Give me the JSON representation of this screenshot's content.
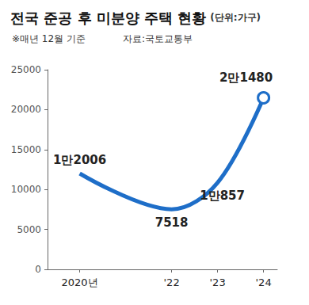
{
  "chart_data": {
    "type": "line",
    "title": "전국 준공 후 미분양 주택 현황",
    "unit": "(단위:가구)",
    "subtitle": "※매년 12월 기준",
    "source": "자료:국토교통부",
    "x": [
      2020,
      2022,
      2023,
      2024
    ],
    "values": [
      12006,
      7518,
      10857,
      21480
    ],
    "value_labels": [
      "1만2006",
      "7518",
      "1만857",
      "2만1480"
    ],
    "color": "#1e6ec8",
    "xlim": [
      2019.3,
      2024.3
    ],
    "xticks": [
      {
        "value": 2020,
        "label": "2020년"
      },
      {
        "value": 2022,
        "label": "'22"
      },
      {
        "value": 2023,
        "label": "'23"
      },
      {
        "value": 2024,
        "label": "'24"
      }
    ],
    "ylim": [
      0,
      25000
    ],
    "yticks": [
      0,
      5000,
      10000,
      15000,
      20000,
      25000
    ],
    "grid": false,
    "data_labels": true
  }
}
